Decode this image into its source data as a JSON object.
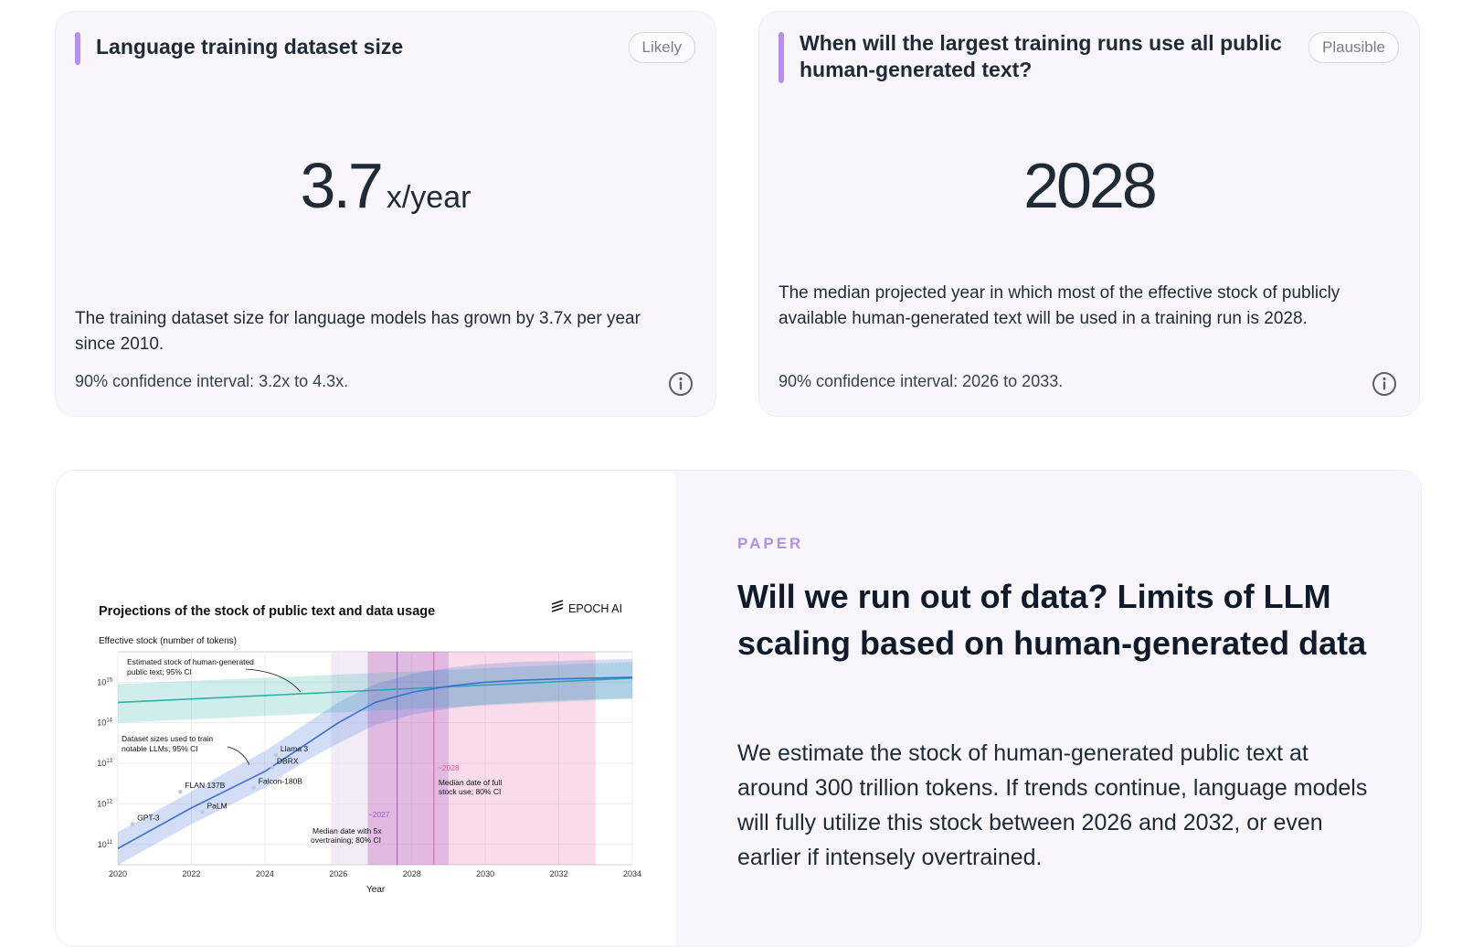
{
  "cards": [
    {
      "title": "Language training dataset size",
      "badge": "Likely",
      "value": "3.7",
      "unit": "x/year",
      "description": "The training dataset size for language models has grown by 3.7x per year since 2010.",
      "confidence": "90% confidence interval: 3.2x to 4.3x.",
      "icon": "info-icon"
    },
    {
      "title": "When will the largest training runs use all public human-generated text?",
      "badge": "Plausible",
      "value": "2028",
      "description": "The median projected year in which most of the effective stock of publicly available human-generated text will be used in a training run is 2028.",
      "confidence": "90% confidence interval: 2026 to 2033.",
      "icon": "info-icon"
    }
  ],
  "paper": {
    "kicker": "PAPER",
    "title": "Will we run out of data? Limits of LLM scaling based on human-generated data",
    "abstract": "We estimate the stock of human-generated public text at around 300 trillion tokens. If trends continue, language models will fully utilize this stock between 2026 and 2032, or even earlier if intensely overtrained."
  },
  "colors": {
    "accent": "#b58ff0",
    "card_bg": "#f8f6fb",
    "stock": "#2bb3a7",
    "dataset": "#3b6fd8",
    "full_use": "#e45b9c",
    "overtrained": "#9b59d0"
  },
  "chart_data": {
    "type": "line",
    "title": "Projections of the stock of public text and data usage",
    "brand": "EPOCH AI",
    "xlabel": "Year",
    "ylabel": "Effective stock (number of tokens)",
    "xlim": [
      2020,
      2034
    ],
    "ylim_log10": [
      10.5,
      15.75
    ],
    "y_scale": "log",
    "x_ticks": [
      "2020",
      "2022",
      "2024",
      "2026",
      "2028",
      "2030",
      "2032",
      "2034"
    ],
    "y_ticks": [
      {
        "base": "10",
        "exp": "11",
        "log": 11
      },
      {
        "base": "10",
        "exp": "12",
        "log": 12
      },
      {
        "base": "10",
        "exp": "13",
        "log": 13
      },
      {
        "base": "10",
        "exp": "14",
        "log": 14
      },
      {
        "base": "10",
        "exp": "15",
        "log": 15
      }
    ],
    "series": [
      {
        "name": "Estimated stock of human-generated public text; 95% CI",
        "x": [
          2020,
          2034
        ],
        "y_log10": [
          14.5,
          15.1
        ],
        "lower_log10": [
          14.0,
          14.6
        ],
        "upper_log10": [
          14.95,
          15.5
        ]
      },
      {
        "name": "Dataset sizes used to train notable LLMs; 95% CI",
        "x": [
          2020,
          2022,
          2024,
          2025,
          2026,
          2027,
          2028,
          2029,
          2030,
          2031,
          2032,
          2033,
          2034
        ],
        "y_log10": [
          10.9,
          11.9,
          12.8,
          13.4,
          14.0,
          14.5,
          14.75,
          14.9,
          15.0,
          15.05,
          15.08,
          15.1,
          15.12
        ],
        "lower_log10": [
          10.5,
          11.5,
          12.4,
          13.0,
          13.5,
          13.95,
          14.2,
          14.35,
          14.45,
          14.5,
          14.55,
          14.58,
          14.6
        ],
        "upper_log10": [
          11.3,
          12.3,
          13.3,
          13.9,
          14.5,
          14.95,
          15.2,
          15.35,
          15.45,
          15.5,
          15.52,
          15.55,
          15.57
        ]
      }
    ],
    "models": [
      {
        "label": "GPT-3",
        "x": 2020.4,
        "y_log10": 11.5
      },
      {
        "label": "FLAN 137B",
        "x": 2021.7,
        "y_log10": 12.3
      },
      {
        "label": "PaLM",
        "x": 2022.3,
        "y_log10": 11.8
      },
      {
        "label": "Falcon-180B",
        "x": 2023.7,
        "y_log10": 12.4
      },
      {
        "label": "DBRX",
        "x": 2024.2,
        "y_log10": 12.9
      },
      {
        "label": "Llama 3",
        "x": 2024.3,
        "y_log10": 13.2
      }
    ],
    "annotations": [
      {
        "label": "~2027",
        "text": "Median date with 5x overtraining; 80% CI",
        "median": 2027.6,
        "range": [
          2026.8,
          2029.0
        ]
      },
      {
        "label": "~2028",
        "text": "Median date of full stock use; 80% CI",
        "median": 2028.6,
        "range": [
          2026.8,
          2033.0
        ]
      }
    ],
    "legend": "inline"
  }
}
